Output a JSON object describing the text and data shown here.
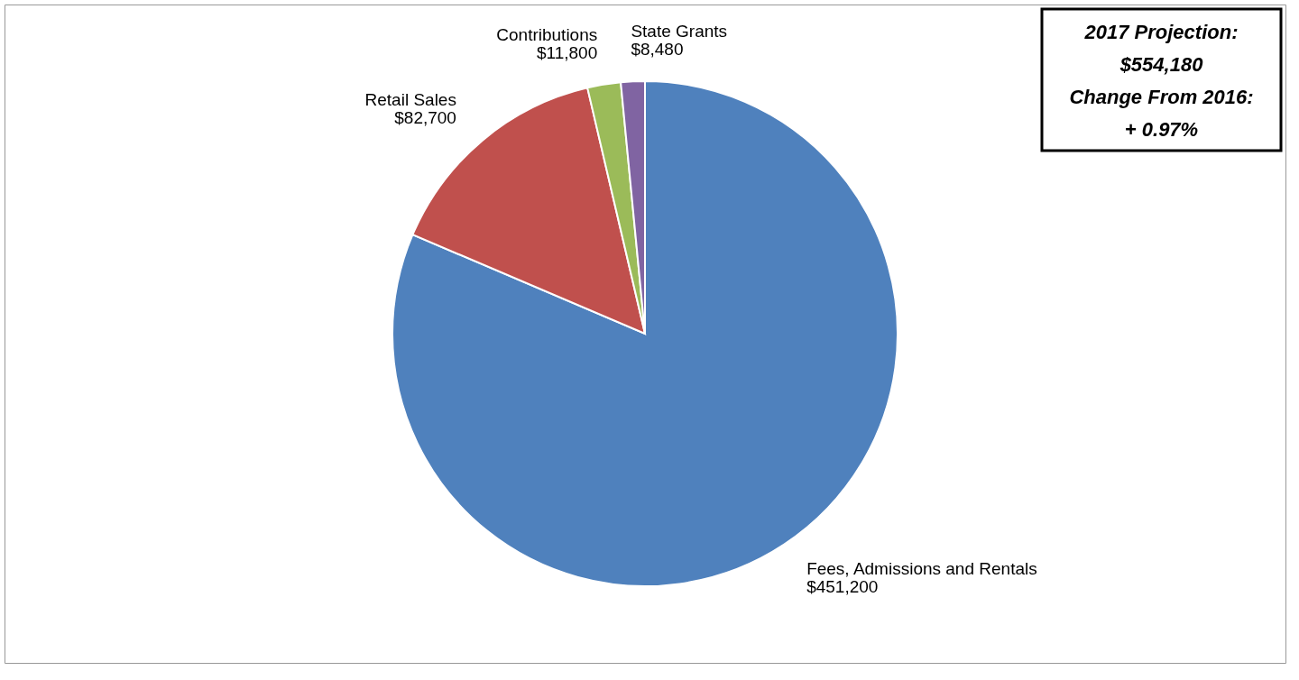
{
  "chart_data": {
    "type": "pie",
    "categories": [
      "Fees, Admissions and Rentals",
      "Retail Sales",
      "Contributions",
      "State Grants"
    ],
    "values": [
      451200,
      82700,
      11800,
      8480
    ],
    "colors": [
      "#4f81bd",
      "#c0504d",
      "#9bbb59",
      "#8064a2"
    ],
    "value_labels": [
      "$451,200",
      "$82,700",
      "$11,800",
      "$8,480"
    ],
    "legend": false,
    "annotations": [
      "2017 Projection:",
      "$554,180",
      "Change From 2016:",
      "+ 0.97%"
    ]
  }
}
